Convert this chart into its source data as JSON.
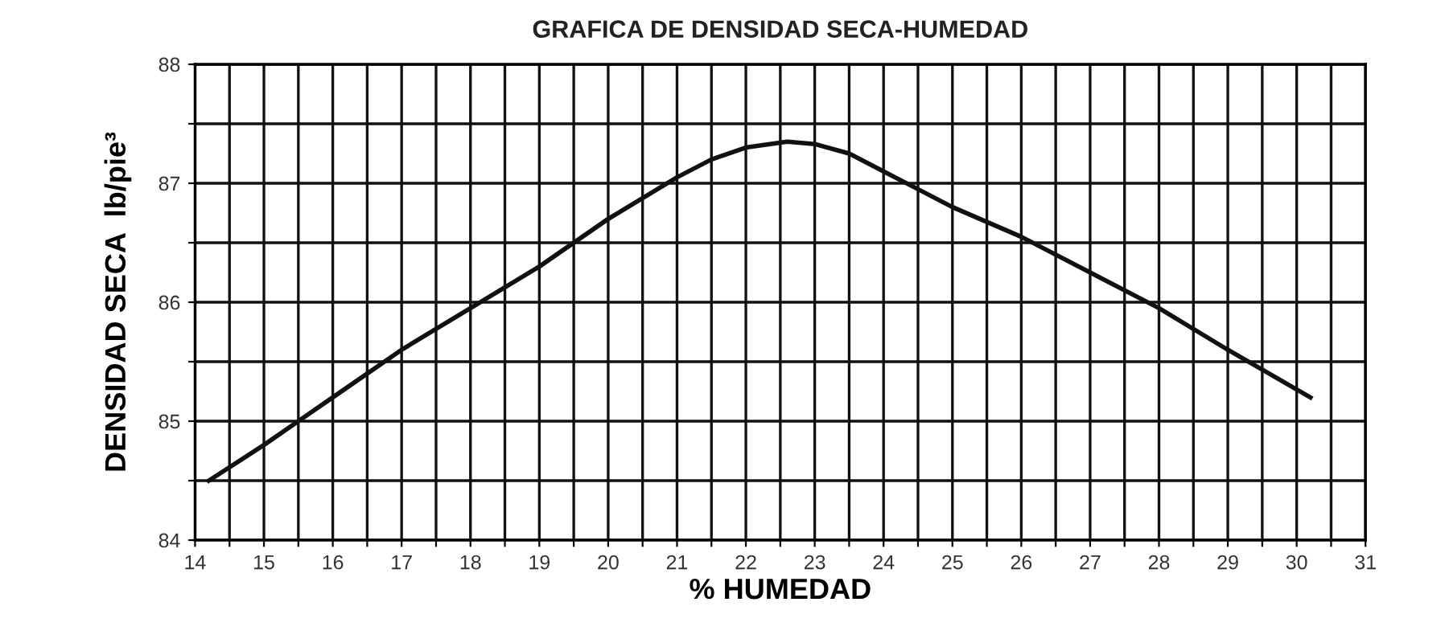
{
  "chart_data": {
    "type": "line",
    "title": "GRAFICA DE DENSIDAD SECA-HUMEDAD",
    "xlabel": "% HUMEDAD",
    "ylabel": "DENSIDAD SECA  lb/pie³",
    "x": [
      14.2,
      15,
      15.5,
      16,
      17,
      18,
      19,
      20,
      21,
      21.5,
      22,
      22.6,
      23,
      23.5,
      24,
      24.5,
      25,
      26,
      27,
      28,
      29,
      30.2
    ],
    "series": [
      {
        "color": "#111111",
        "values": [
          84.5,
          84.8,
          85.0,
          85.2,
          85.6,
          85.95,
          86.3,
          86.7,
          87.05,
          87.2,
          87.3,
          87.35,
          87.33,
          87.25,
          87.1,
          86.95,
          86.8,
          86.55,
          86.25,
          85.95,
          85.6,
          85.2
        ]
      }
    ],
    "xlim": [
      14,
      31
    ],
    "xticks": [
      14,
      {
        "value": 14.5,
        "label": null
      },
      15,
      {
        "value": 15.5,
        "label": null
      },
      16,
      {
        "value": 16.5,
        "label": null
      },
      17,
      {
        "value": 17.5,
        "label": null
      },
      18,
      {
        "value": 18.5,
        "label": null
      },
      19,
      {
        "value": 19.5,
        "label": null
      },
      20,
      {
        "value": 20.5,
        "label": null
      },
      21,
      {
        "value": 21.5,
        "label": null
      },
      22,
      {
        "value": 22.5,
        "label": null
      },
      23,
      {
        "value": 23.5,
        "label": null
      },
      24,
      {
        "value": 24.5,
        "label": null
      },
      25,
      {
        "value": 25.5,
        "label": null
      },
      26,
      {
        "value": 26.5,
        "label": null
      },
      27,
      {
        "value": 27.5,
        "label": null
      },
      28,
      {
        "value": 28.5,
        "label": null
      },
      29,
      {
        "value": 29.5,
        "label": null
      },
      30,
      {
        "value": 30.5,
        "label": null
      },
      31
    ],
    "ylim": [
      84,
      88
    ],
    "yticks": [
      84,
      {
        "value": 84.5,
        "label": null
      },
      85,
      {
        "value": 85.5,
        "label": null
      },
      86,
      {
        "value": 86.5,
        "label": null
      },
      87,
      {
        "value": 87.5,
        "label": null
      },
      88
    ],
    "grid": true,
    "marker": "none",
    "line_style": "solid"
  }
}
